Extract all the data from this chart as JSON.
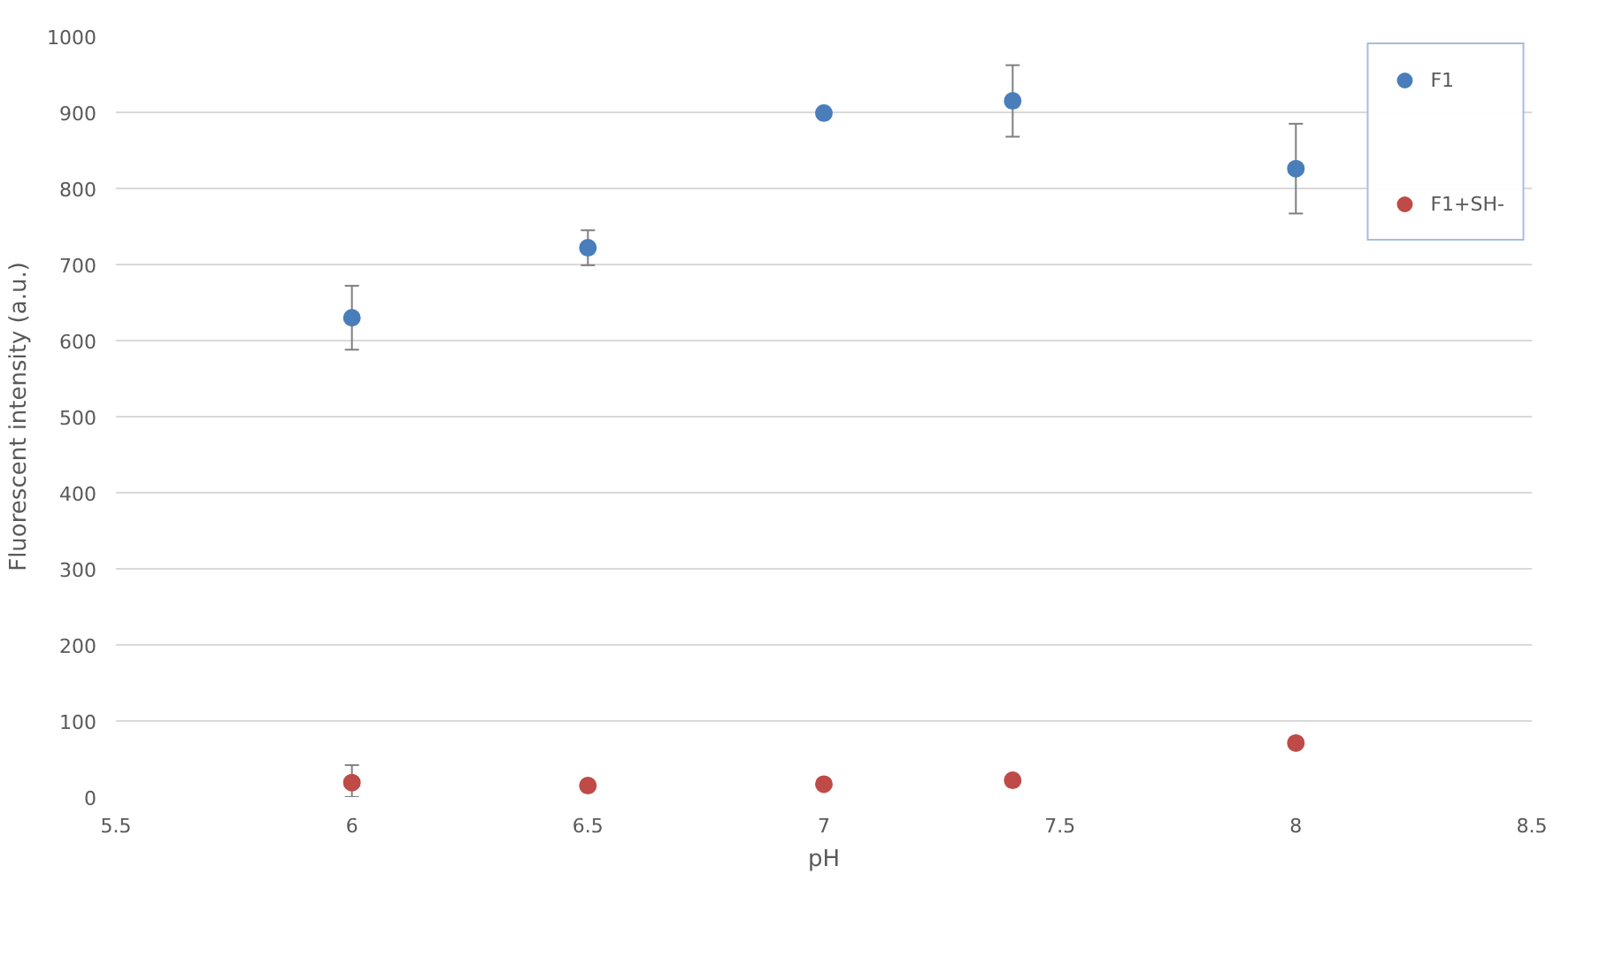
{
  "chart_data": {
    "type": "scatter",
    "xlabel": "pH",
    "ylabel": "Fluorescent intensity (a.u.)",
    "x": [
      6,
      6.5,
      7,
      7.4,
      8
    ],
    "series": [
      {
        "name": "F1",
        "color": "#4a7ebb",
        "values": [
          630,
          722,
          899,
          915,
          826
        ],
        "errors": [
          42,
          23,
          3,
          47,
          59
        ]
      },
      {
        "name": "F1+SH-",
        "color": "#be4b48",
        "values": [
          19,
          15,
          17,
          22,
          71
        ],
        "errors": [
          [
            0,
            42
          ],
          null,
          null,
          null,
          null
        ]
      }
    ],
    "xlim": [
      5.5,
      8.5
    ],
    "xticks": [
      5.5,
      6,
      6.5,
      7,
      7.5,
      8,
      8.5
    ],
    "ylim": [
      0,
      1000
    ],
    "yticks": [
      0,
      100,
      200,
      300,
      400,
      500,
      600,
      700,
      800,
      900,
      1000
    ],
    "grid": "y",
    "legend": "top right",
    "marker": "circle"
  }
}
